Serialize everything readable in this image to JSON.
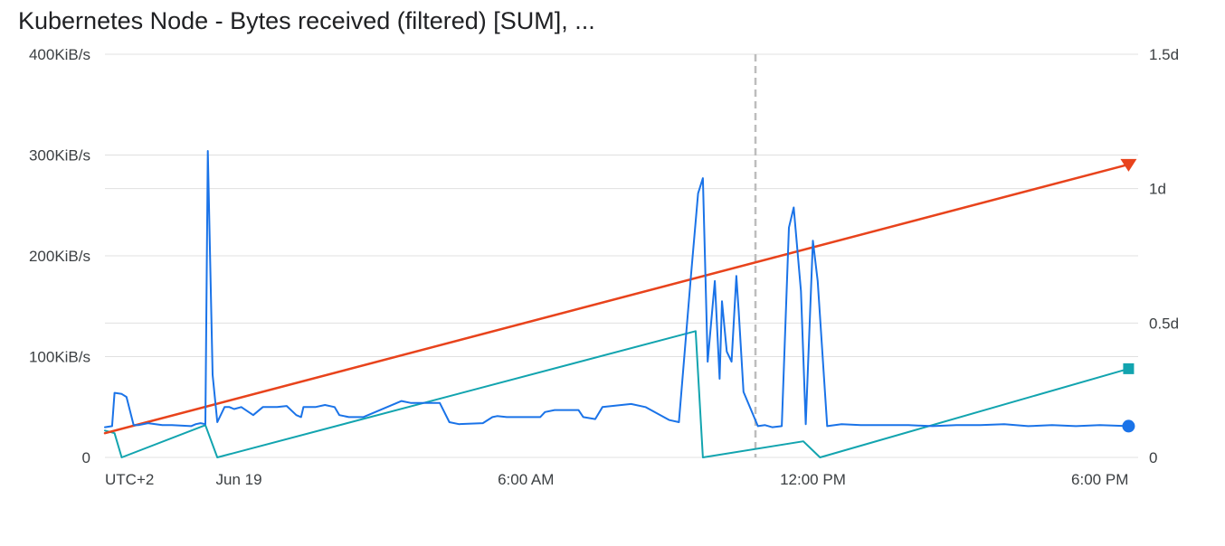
{
  "title": "Kubernetes Node - Bytes received (filtered) [SUM], ...",
  "colors": {
    "bytes_received": "#1a73e8",
    "series_teal": "#12a4af",
    "series_red": "#e8431c",
    "grid": "#e0e0e0",
    "cursor": "#bdbdbd",
    "text": "#3c4043"
  },
  "chart_data": {
    "type": "line",
    "title": "Kubernetes Node - Bytes received (filtered) [SUM], ...",
    "timezone_label": "UTC+2",
    "x_range": [
      -2.8,
      18.8
    ],
    "x_ticks": [
      {
        "value": -2.8,
        "label": "UTC+2"
      },
      {
        "value": 0,
        "label": "Jun 19"
      },
      {
        "value": 6,
        "label": "6:00 AM"
      },
      {
        "value": 12,
        "label": "12:00 PM"
      },
      {
        "value": 18,
        "label": "6:00 PM"
      }
    ],
    "cursor_x": 10.8,
    "y_left": {
      "unit": "KiB/s",
      "range": [
        0,
        400
      ],
      "ticks": [
        {
          "value": 0,
          "label": "0"
        },
        {
          "value": 100,
          "label": "100KiB/s"
        },
        {
          "value": 200,
          "label": "200KiB/s"
        },
        {
          "value": 300,
          "label": "300KiB/s"
        },
        {
          "value": 400,
          "label": "400KiB/s"
        }
      ]
    },
    "y_right": {
      "unit": "d",
      "range": [
        0,
        1.5
      ],
      "ticks": [
        {
          "value": 0,
          "label": "0"
        },
        {
          "value": 0.5,
          "label": "0.5d"
        },
        {
          "value": 1,
          "label": "1d"
        },
        {
          "value": 1.5,
          "label": "1.5d"
        }
      ]
    },
    "grid": true,
    "legend": "none",
    "series": [
      {
        "axis": "left",
        "color": "#1a73e8",
        "end_marker": "circle",
        "x": [
          -2.8,
          -2.65,
          -2.6,
          -2.45,
          -2.35,
          -2.2,
          -2.1,
          -1.9,
          -1.6,
          -1.4,
          -1.0,
          -0.9,
          -0.8,
          -0.7,
          -0.65,
          -0.55,
          -0.45,
          -0.3,
          -0.2,
          -0.1,
          0.05,
          0.3,
          0.5,
          0.8,
          1.0,
          1.2,
          1.3,
          1.35,
          1.6,
          1.8,
          2.0,
          2.1,
          2.3,
          2.45,
          2.6,
          3.3,
          3.4,
          3.6,
          4.2,
          4.4,
          4.6,
          5.1,
          5.3,
          5.4,
          5.6,
          6.3,
          6.4,
          6.6,
          7.1,
          7.2,
          7.45,
          7.6,
          8.0,
          8.2,
          8.5,
          9.0,
          9.2,
          9.45,
          9.6,
          9.7,
          9.8,
          9.95,
          10.05,
          10.1,
          10.2,
          10.3,
          10.4,
          10.45,
          10.55,
          10.85,
          11.0,
          11.15,
          11.35,
          11.5,
          11.6,
          11.75,
          11.85,
          12.0,
          12.1,
          12.3,
          12.6,
          13.0,
          13.5,
          14.0,
          14.5,
          15.0,
          15.5,
          16.0,
          16.5,
          17.0,
          17.5,
          18.0,
          18.6
        ],
        "y": [
          30,
          31,
          64,
          63,
          60,
          32,
          32,
          34,
          32,
          32,
          31,
          33,
          34,
          33,
          304,
          82,
          35,
          50,
          50,
          48,
          50,
          42,
          50,
          50,
          51,
          42,
          40,
          50,
          50,
          52,
          50,
          42,
          40,
          40,
          40,
          54,
          56,
          54,
          54,
          35,
          33,
          34,
          40,
          41,
          40,
          40,
          45,
          47,
          47,
          40,
          38,
          50,
          52,
          53,
          50,
          37,
          35,
          180,
          262,
          277,
          95,
          175,
          78,
          155,
          105,
          95,
          180,
          145,
          65,
          31,
          32,
          30,
          31,
          228,
          248,
          165,
          33,
          215,
          175,
          31,
          33,
          32,
          32,
          32,
          31,
          32,
          32,
          33,
          31,
          32,
          31,
          32,
          31
        ]
      },
      {
        "axis": "right",
        "color": "#12a4af",
        "end_marker": "square",
        "x": [
          -2.8,
          -2.6,
          -2.45,
          -0.7,
          -0.45,
          9.55,
          9.7,
          11.8,
          12.15,
          18.6
        ],
        "y": [
          0.1,
          0.09,
          0.0,
          0.12,
          0.0,
          0.47,
          0.0,
          0.06,
          0.0,
          0.33
        ]
      },
      {
        "axis": "right",
        "color": "#e8431c",
        "end_marker": "triangle-down",
        "x": [
          -2.8,
          18.6
        ],
        "y": [
          0.09,
          1.09
        ]
      }
    ]
  }
}
